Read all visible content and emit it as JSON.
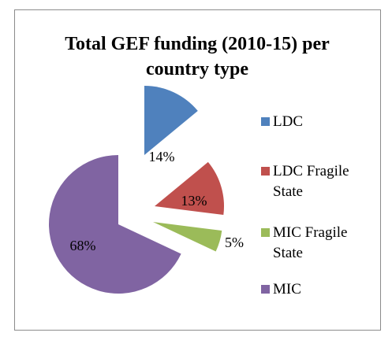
{
  "chart_data": {
    "type": "pie",
    "title": "Total GEF funding (2010-15) per country type",
    "categories": [
      "LDC",
      "LDC Fragile State",
      "MIC Fragile State",
      "MIC"
    ],
    "values": [
      14,
      13,
      5,
      68
    ],
    "value_labels": [
      "14%",
      "13%",
      "5%",
      "68%"
    ],
    "colors": [
      "#4f81bd",
      "#c0504d",
      "#9bbb59",
      "#8064a2"
    ],
    "legend": "right"
  }
}
